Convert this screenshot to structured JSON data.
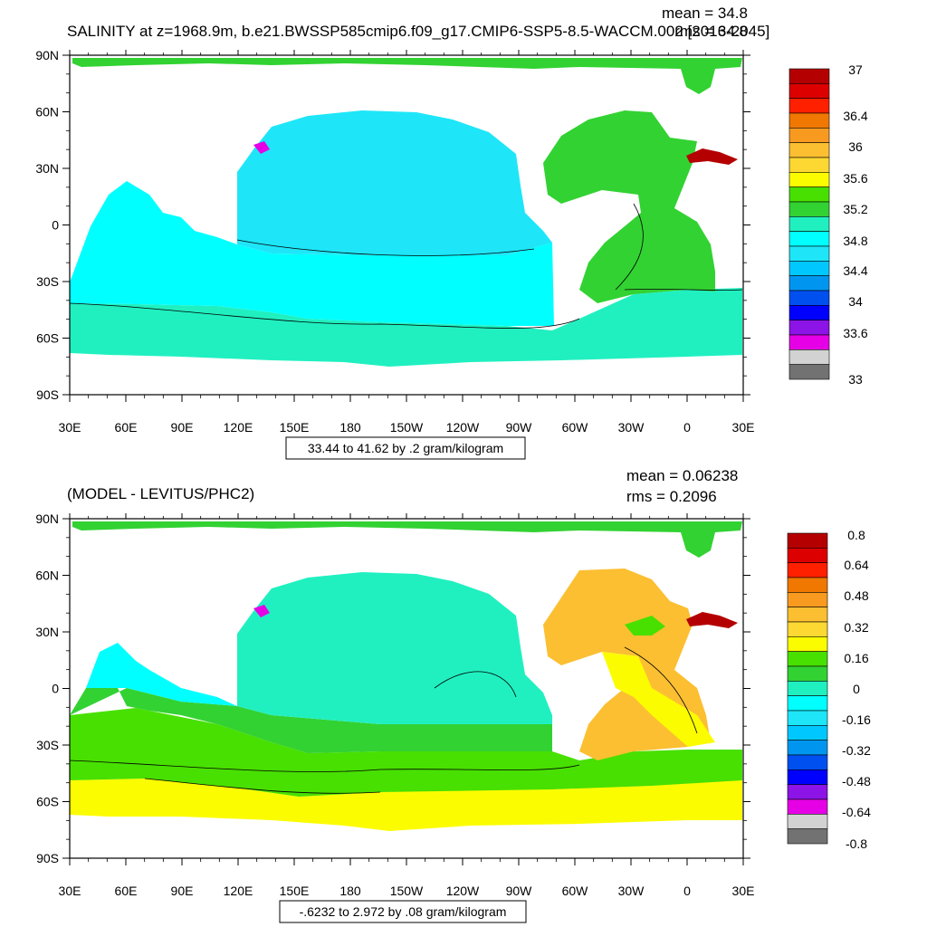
{
  "chart_data": [
    {
      "type": "heatmap",
      "title": "SALINITY at z=1968.9m, b.e21.BWSSP585cmip6.f09_g17.CMIP6-SSP5-8.5-WACCM.002 [2016-2045]",
      "stats": {
        "mean": "mean = 34.8",
        "rms": "rms = 34.8"
      },
      "x_ticks": [
        "30E",
        "60E",
        "90E",
        "120E",
        "150E",
        "180",
        "150W",
        "120W",
        "90W",
        "60W",
        "30W",
        "0",
        "30E"
      ],
      "y_ticks": [
        "90N",
        "60N",
        "30N",
        "0",
        "30S",
        "60S",
        "90S"
      ],
      "xlim_lon_east": [
        30,
        390
      ],
      "ylim_lat": [
        -90,
        90
      ],
      "range_label": "33.44 to 41.62 by .2 gram/kilogram",
      "colorbar_labels": [
        "37",
        "36.4",
        "36",
        "35.6",
        "35.2",
        "34.8",
        "34.4",
        "34",
        "33.6",
        "33"
      ],
      "colorbar_colors": [
        "#b40000",
        "#dc0000",
        "#ff2000",
        "#f07800",
        "#f89a20",
        "#fcbf32",
        "#fdd832",
        "#fcfc00",
        "#48e000",
        "#32d232",
        "#20f0c0",
        "#00ffff",
        "#1ee6f8",
        "#00c8ff",
        "#0096f0",
        "#0050f0",
        "#0000ff",
        "#8c14e6",
        "#e600e6",
        "#d2d2d2",
        "#727272"
      ],
      "regions": [
        {
          "name": "pacific",
          "value": 34.6,
          "color": "#1ee6f8"
        },
        {
          "name": "southern-indian",
          "value": 34.75,
          "color": "#00ffff"
        },
        {
          "name": "southern-ocean",
          "value": 34.8,
          "color": "#20f0c0"
        },
        {
          "name": "atlantic",
          "value": 35.0,
          "color": "#32d232"
        },
        {
          "name": "north-atlantic",
          "value": 35.1,
          "color": "#48e000"
        },
        {
          "name": "arctic",
          "value": 35.0,
          "color": "#32d232"
        },
        {
          "name": "mediterranean",
          "value": 37.0,
          "color": "#b40000"
        },
        {
          "name": "japan-sea",
          "value": 33.6,
          "color": "#e600e6"
        }
      ]
    },
    {
      "type": "heatmap",
      "title": "(MODEL - LEVITUS/PHC2)",
      "stats": {
        "mean": "mean = 0.06238",
        "rms": "rms = 0.2096"
      },
      "x_ticks": [
        "30E",
        "60E",
        "90E",
        "120E",
        "150E",
        "180",
        "150W",
        "120W",
        "90W",
        "60W",
        "30W",
        "0",
        "30E"
      ],
      "y_ticks": [
        "90N",
        "60N",
        "30N",
        "0",
        "30S",
        "60S",
        "90S"
      ],
      "xlim_lon_east": [
        30,
        390
      ],
      "ylim_lat": [
        -90,
        90
      ],
      "range_label": "-.6232 to 2.972 by .08 gram/kilogram",
      "colorbar_labels": [
        "0.8",
        "0.64",
        "0.48",
        "0.32",
        "0.16",
        "0",
        "-0.16",
        "-0.32",
        "-0.48",
        "-0.64",
        "-0.8"
      ],
      "colorbar_colors": [
        "#b40000",
        "#dc0000",
        "#ff2000",
        "#f07800",
        "#f89a20",
        "#fcbf32",
        "#fdd832",
        "#fcfc00",
        "#48e000",
        "#32d232",
        "#20f0c0",
        "#00ffff",
        "#1ee6f8",
        "#00c8ff",
        "#0096f0",
        "#0050f0",
        "#0000ff",
        "#8c14e6",
        "#e600e6",
        "#d2d2d2",
        "#727272"
      ],
      "regions": [
        {
          "name": "pacific",
          "value": -0.05,
          "color": "#20f0c0"
        },
        {
          "name": "southern-indian",
          "value": 0.05,
          "color": "#32d232"
        },
        {
          "name": "southern-ocean",
          "value": 0.1,
          "color": "#48e000"
        },
        {
          "name": "southern-band",
          "value": 0.2,
          "color": "#fcfc00"
        },
        {
          "name": "atlantic",
          "value": 0.3,
          "color": "#fcbf32"
        },
        {
          "name": "tropical-atlantic",
          "value": 0.2,
          "color": "#fcfc00"
        },
        {
          "name": "arctic",
          "value": 0.05,
          "color": "#32d232"
        },
        {
          "name": "mediterranean",
          "value": 0.8,
          "color": "#b40000"
        },
        {
          "name": "japan-sea",
          "value": -0.64,
          "color": "#e600e6"
        }
      ]
    }
  ]
}
